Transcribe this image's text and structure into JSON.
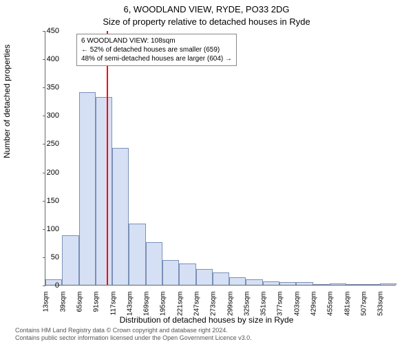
{
  "title_line1": "6, WOODLAND VIEW, RYDE, PO33 2DG",
  "title_line2": "Size of property relative to detached houses in Ryde",
  "ylabel": "Number of detached properties",
  "xlabel": "Distribution of detached houses by size in Ryde",
  "footnote_line1": "Contains HM Land Registry data © Crown copyright and database right 2024.",
  "footnote_line2": "Contains public sector information licensed under the Open Government Licence v3.0.",
  "chart": {
    "type": "histogram",
    "ylim": [
      0,
      450
    ],
    "ytick_step": 50,
    "x_start": 13,
    "x_step": 26,
    "x_count": 21,
    "bar_fill": "#d6e0f4",
    "bar_stroke": "#7a8fb8",
    "background": "#ffffff",
    "values": [
      10,
      88,
      340,
      332,
      242,
      108,
      76,
      44,
      38,
      28,
      22,
      14,
      10,
      6,
      5,
      5,
      0,
      3,
      0,
      0,
      2
    ],
    "marker_x": 108,
    "marker_color": "#ff0000",
    "annotation": {
      "line1": "6 WOODLAND VIEW: 108sqm",
      "line2": "← 52% of detached houses are smaller (659)",
      "line3": "48% of semi-detached houses are larger (604) →"
    }
  }
}
